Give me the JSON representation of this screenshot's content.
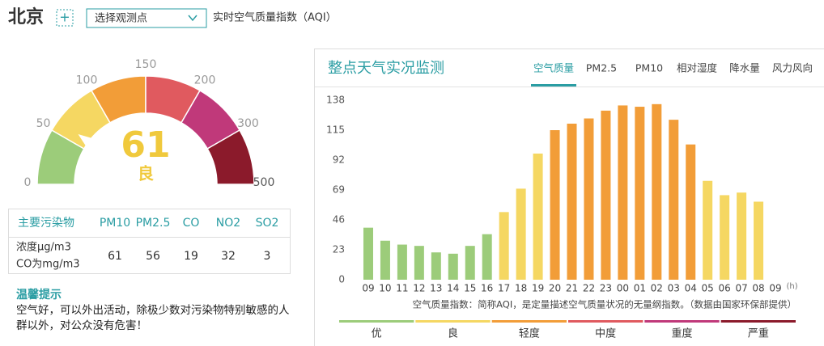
{
  "header": {
    "city": "北京",
    "add": "+",
    "select": "选择观测点",
    "aqi_label": "实时空气质量指数（AQI）"
  },
  "gauge": {
    "value": 61,
    "level": "良",
    "ticks": [
      0,
      50,
      100,
      150,
      200,
      300,
      500
    ]
  },
  "pollutants": {
    "headers": [
      "主要污染物",
      "PM10",
      "PM2.5",
      "CO",
      "NO2",
      "SO2"
    ],
    "row_label": [
      "浓度μg/m3",
      "CO为mg/m3"
    ],
    "values": [
      61,
      56,
      19,
      32,
      3
    ]
  },
  "tip": {
    "title": "温馨提示",
    "text": "空气好，可以外出活动，除极少数对污染物特别敏感的人群以外，对公众没有危害！"
  },
  "panel": {
    "title": "整点天气实况监测",
    "tabs": [
      "空气质量",
      "PM2.5",
      "PM10",
      "相对湿度",
      "降水量",
      "风力风向"
    ],
    "active_tab": 0
  },
  "chart_data": {
    "type": "bar",
    "categories": [
      "09",
      "10",
      "11",
      "12",
      "13",
      "14",
      "15",
      "16",
      "17",
      "18",
      "19",
      "20",
      "21",
      "22",
      "23",
      "00",
      "01",
      "02",
      "03",
      "04",
      "05",
      "06",
      "07",
      "08",
      "09"
    ],
    "x_unit": "(h)",
    "values": [
      40,
      30,
      27,
      26,
      21,
      20,
      26,
      35,
      52,
      70,
      97,
      115,
      120,
      124,
      130,
      134,
      133,
      135,
      123,
      104,
      76,
      65,
      67,
      60,
      null
    ],
    "ylim": [
      0,
      138
    ],
    "yticks": [
      0,
      23,
      46,
      69,
      92,
      115,
      138
    ],
    "grid": false,
    "note": "空气质量指数：简称AQI，是定量描述空气质量状况的无量纲指数。（数据由国家环保部提供）",
    "legend": [
      {
        "name": "优",
        "color": "#9ccc7a"
      },
      {
        "name": "良",
        "color": "#f5d762"
      },
      {
        "name": "轻度",
        "color": "#f29d38"
      },
      {
        "name": "中度",
        "color": "#e05a5f"
      },
      {
        "name": "重度",
        "color": "#c0397a"
      },
      {
        "name": "严重",
        "color": "#8b1a2b"
      }
    ]
  }
}
